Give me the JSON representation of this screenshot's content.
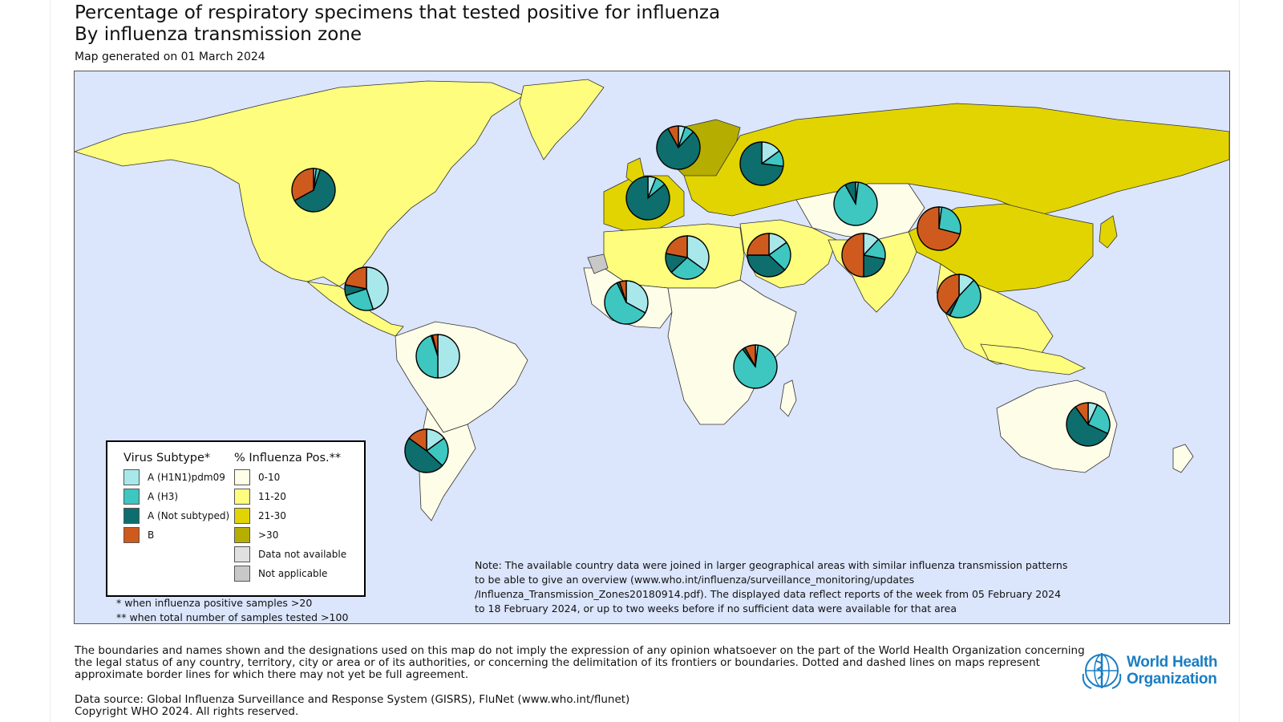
{
  "header": {
    "title": "Percentage of respiratory specimens that tested positive for influenza",
    "subtitle": "By influenza transmission zone",
    "generated": "Map generated on 01 March 2024"
  },
  "colors": {
    "ocean": "#dbe5fb",
    "h1n1": "#a8e8ea",
    "h3": "#3ec6c0",
    "not_subtyped": "#0d6e6d",
    "b": "#cf5a1e",
    "pos_0_10": "#fefde8",
    "pos_11_20": "#fefd7d",
    "pos_21_30": "#e2d400",
    "pos_gt30": "#b5ae00",
    "not_available": "#e0e0e0",
    "not_applicable": "#c8c8c8"
  },
  "legend": {
    "subtype_title": "Virus Subtype*",
    "subtypes": [
      {
        "label": "A (H1N1)pdm09",
        "color": "#a8e8ea"
      },
      {
        "label": "A (H3)",
        "color": "#3ec6c0"
      },
      {
        "label": "A (Not subtyped)",
        "color": "#0d6e6d"
      },
      {
        "label": "B",
        "color": "#cf5a1e"
      }
    ],
    "pos_title": "% Influenza Pos.**",
    "pos_classes": [
      {
        "label": "0-10",
        "color": "#fefde8"
      },
      {
        "label": "11-20",
        "color": "#fefd7d"
      },
      {
        "label": "21-30",
        "color": "#e2d400"
      },
      {
        "label": ">30",
        "color": "#b5ae00"
      },
      {
        "label": "Data not available",
        "color": "#e0e0e0"
      },
      {
        "label": "Not applicable",
        "color": "#c8c8c8"
      }
    ],
    "footnote1": "* when influenza positive samples >20",
    "footnote2": "** when total number of samples tested >100"
  },
  "note": "Note: The available country data were joined in larger geographical areas with similar influenza transmission patterns to be able to give an overview (www.who.int/influenza/surveillance_monitoring/updates /Influenza_Transmission_Zones20180914.pdf). The displayed data reflect reports of the week from 05 February 2024 to 18 February 2024, or up to two weeks before if no sufficient data were available for that area",
  "disclaimer": "The boundaries and names shown and the designations used on this map do not imply the expression of any opinion whatsoever on the part of the World Health Organization concerning the legal status of any country, territory, city or area or of its authorities, or concerning the delimitation of its frontiers or boundaries. Dotted and dashed lines on maps represent approximate border lines for which there may not yet be full agreement.",
  "source_line": "Data source: Global Influenza Surveillance and Response System (GISRS), FluNet (www.who.int/flunet)",
  "copyright_line": "Copyright WHO 2024. All rights reserved.",
  "logo": {
    "line1": "World Health",
    "line2": "Organization"
  },
  "chart_data": {
    "type": "pie",
    "series_order": [
      "A (H1N1)pdm09",
      "A (H3)",
      "A (Not subtyped)",
      "B"
    ],
    "zones": [
      {
        "zone": "North America",
        "fractions": [
          0.02,
          0.03,
          0.62,
          0.33
        ],
        "positivity_class": "11-20"
      },
      {
        "zone": "Northern Europe",
        "fractions": [
          0.05,
          0.07,
          0.8,
          0.08
        ],
        "positivity_class": ">30"
      },
      {
        "zone": "Eastern Europe",
        "fractions": [
          0.15,
          0.12,
          0.73,
          0.0
        ],
        "positivity_class": "21-30"
      },
      {
        "zone": "South West Europe",
        "fractions": [
          0.06,
          0.08,
          0.86,
          0.0
        ],
        "positivity_class": "21-30"
      },
      {
        "zone": "Central Asia",
        "fractions": [
          0.02,
          0.9,
          0.08,
          0.0
        ],
        "positivity_class": "0-10"
      },
      {
        "zone": "Eastern Asia",
        "fractions": [
          0.02,
          0.27,
          0.0,
          0.71
        ],
        "positivity_class": "21-30"
      },
      {
        "zone": "Southern Asia",
        "fractions": [
          0.12,
          0.16,
          0.22,
          0.5
        ],
        "positivity_class": "11-20"
      },
      {
        "zone": "Western Asia",
        "fractions": [
          0.15,
          0.22,
          0.38,
          0.25
        ],
        "positivity_class": "11-20"
      },
      {
        "zone": "Northern Africa",
        "fractions": [
          0.35,
          0.28,
          0.15,
          0.22
        ],
        "positivity_class": "11-20"
      },
      {
        "zone": "Central America Caribbean",
        "fractions": [
          0.45,
          0.25,
          0.08,
          0.22
        ],
        "positivity_class": "11-20"
      },
      {
        "zone": "Western Africa",
        "fractions": [
          0.33,
          0.6,
          0.02,
          0.05
        ],
        "positivity_class": "0-10"
      },
      {
        "zone": "South East Asia",
        "fractions": [
          0.12,
          0.45,
          0.03,
          0.4
        ],
        "positivity_class": "11-20"
      },
      {
        "zone": "Tropical South America",
        "fractions": [
          0.5,
          0.45,
          0.01,
          0.04
        ],
        "positivity_class": "0-10"
      },
      {
        "zone": "Eastern Africa",
        "fractions": [
          0.02,
          0.88,
          0.02,
          0.08
        ],
        "positivity_class": "0-10"
      },
      {
        "zone": "Temperate South America",
        "fractions": [
          0.15,
          0.22,
          0.48,
          0.15
        ],
        "positivity_class": "0-10"
      },
      {
        "zone": "Oceania Melanesia Polynesia",
        "fractions": [
          0.07,
          0.25,
          0.58,
          0.1
        ],
        "positivity_class": "0-10"
      }
    ]
  }
}
